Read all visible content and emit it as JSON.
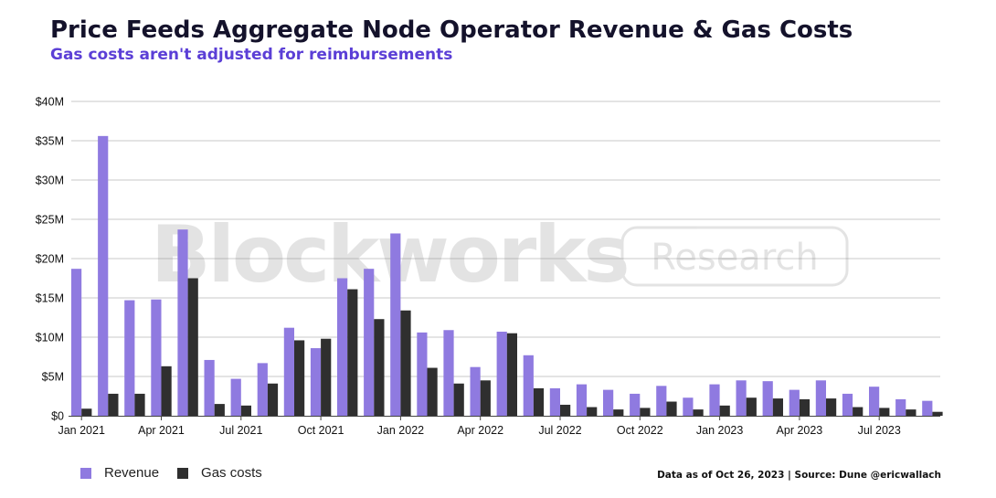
{
  "title": "Price Feeds Aggregate Node Operator Revenue & Gas Costs",
  "subtitle": "Gas costs aren't adjusted for reimbursements",
  "source_note": "Data as of Oct 26, 2023 | Source: Dune @ericwallach",
  "watermark": {
    "brand": "Blockworks",
    "tag": "Research"
  },
  "colors": {
    "revenue": "#8f7ae0",
    "gas": "#2f2f2f",
    "grid": "#c9c9c9",
    "title": "#14122b",
    "subtitle": "#5b3fd6"
  },
  "chart_data": {
    "type": "bar",
    "title": "Price Feeds Aggregate Node Operator Revenue & Gas Costs",
    "subtitle": "Gas costs aren't adjusted for reimbursements",
    "xlabel": "",
    "ylabel": "",
    "ylim": [
      0,
      40
    ],
    "y_unit": "$M",
    "y_ticks": [
      0,
      5,
      10,
      15,
      20,
      25,
      30,
      35,
      40
    ],
    "y_tick_labels": [
      "$0",
      "$5M",
      "$10M",
      "$15M",
      "$20M",
      "$25M",
      "$30M",
      "$35M",
      "$40M"
    ],
    "categories": [
      "2021-01",
      "2021-02",
      "2021-03",
      "2021-04",
      "2021-05",
      "2021-06",
      "2021-07",
      "2021-08",
      "2021-09",
      "2021-10",
      "2021-11",
      "2021-12",
      "2022-01",
      "2022-02",
      "2022-03",
      "2022-04",
      "2022-05",
      "2022-06",
      "2022-07",
      "2022-08",
      "2022-09",
      "2022-10",
      "2022-11",
      "2022-12",
      "2023-01",
      "2023-02",
      "2023-03",
      "2023-04",
      "2023-05",
      "2023-06",
      "2023-07",
      "2023-08",
      "2023-09"
    ],
    "x_tick_labels": [
      {
        "index": 0,
        "label": "Jan 2021"
      },
      {
        "index": 3,
        "label": "Apr 2021"
      },
      {
        "index": 6,
        "label": "Jul 2021"
      },
      {
        "index": 9,
        "label": "Oct 2021"
      },
      {
        "index": 12,
        "label": "Jan 2022"
      },
      {
        "index": 15,
        "label": "Apr 2022"
      },
      {
        "index": 18,
        "label": "Jul 2022"
      },
      {
        "index": 21,
        "label": "Oct 2022"
      },
      {
        "index": 24,
        "label": "Jan 2023"
      },
      {
        "index": 27,
        "label": "Apr 2023"
      },
      {
        "index": 30,
        "label": "Jul 2023"
      }
    ],
    "series": [
      {
        "name": "Revenue",
        "values": [
          18.7,
          35.6,
          14.7,
          14.8,
          23.7,
          7.1,
          4.7,
          6.7,
          11.2,
          8.6,
          17.5,
          18.7,
          23.2,
          10.6,
          10.9,
          6.2,
          10.7,
          7.7,
          3.5,
          4.0,
          3.3,
          2.8,
          3.8,
          2.3,
          4.0,
          4.5,
          4.4,
          3.3,
          4.5,
          2.8,
          3.7,
          2.1,
          1.9
        ]
      },
      {
        "name": "Gas costs",
        "values": [
          0.9,
          2.8,
          2.8,
          6.3,
          17.5,
          1.5,
          1.3,
          4.1,
          9.6,
          9.8,
          16.1,
          12.3,
          13.4,
          6.1,
          4.1,
          4.5,
          10.5,
          3.5,
          1.4,
          1.1,
          0.8,
          1.0,
          1.8,
          0.8,
          1.3,
          2.3,
          2.2,
          2.1,
          2.2,
          1.1,
          1.0,
          0.8,
          0.5
        ]
      }
    ],
    "legend": {
      "position": "bottom-left",
      "entries": [
        "Revenue",
        "Gas costs"
      ]
    },
    "grid": true
  }
}
